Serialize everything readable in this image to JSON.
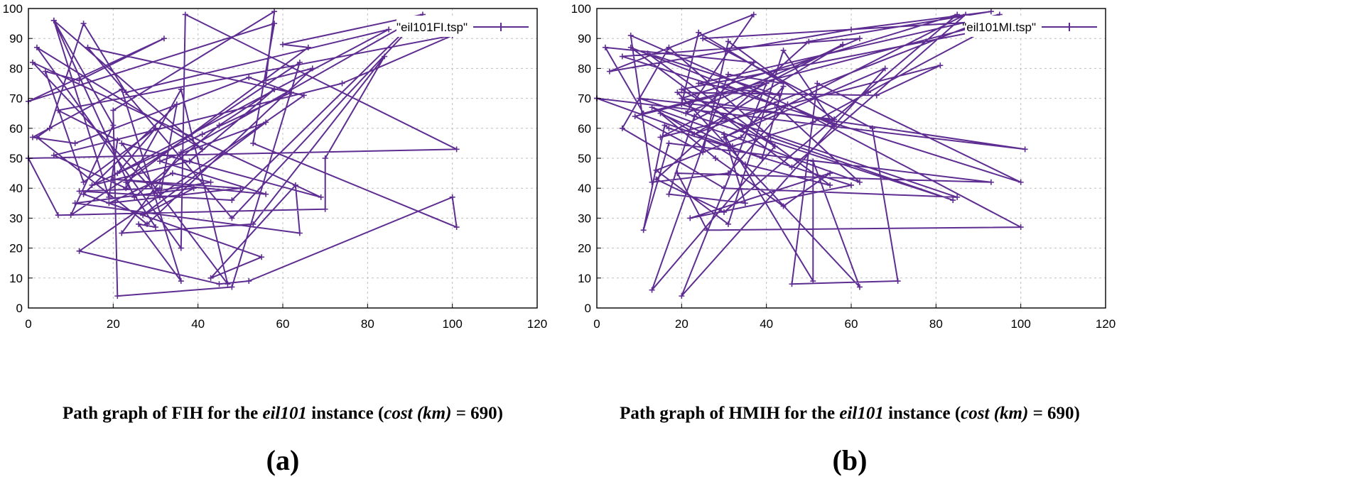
{
  "colors": {
    "series": "#5e2d91",
    "grid": "#bfbfbf",
    "axis": "#000000"
  },
  "chart_data": [
    {
      "type": "line",
      "panel": "(a)",
      "legend": "\"eil101FI.tsp\"",
      "caption": {
        "pre": "Path graph of FIH for the ",
        "instance": "eil101",
        "mid": " instance (",
        "cost": "cost",
        "km": "(km)",
        "post": " = 690)"
      },
      "xlim": [
        0,
        120
      ],
      "ylim": [
        0,
        100
      ],
      "xticks": [
        0,
        20,
        40,
        60,
        80,
        100,
        120
      ],
      "yticks": [
        0,
        10,
        20,
        30,
        40,
        50,
        60,
        70,
        80,
        90,
        100
      ],
      "grid": true,
      "series": [
        {
          "name": "eil101FI.tsp",
          "x": [
            0,
            101,
            37,
            36,
            2,
            41,
            6,
            20,
            10,
            64,
            48,
            21,
            20,
            58,
            56,
            67,
            28,
            2,
            5,
            13,
            23,
            85,
            21,
            30,
            13,
            4,
            12,
            32,
            0,
            58,
            53,
            101,
            100,
            52,
            45,
            12,
            65,
            14,
            48,
            93,
            60,
            66,
            23,
            30,
            26,
            36,
            22,
            1,
            11,
            52,
            62,
            41,
            15,
            38,
            58,
            45,
            25,
            6,
            19,
            21,
            7,
            100,
            74,
            6,
            23,
            36,
            47,
            22,
            69,
            1,
            31,
            35,
            13,
            55,
            43,
            63,
            64,
            11,
            39,
            27,
            56,
            31,
            56,
            20,
            50,
            19,
            34,
            43,
            30,
            31,
            12,
            48,
            92,
            36,
            22,
            53,
            84,
            70,
            70,
            7,
            0
          ],
          "y": [
            50,
            53,
            98,
            20,
            87,
            53,
            96,
            61,
            31,
            82,
            7,
            4,
            66,
            99,
            76,
            80,
            28,
            57,
            60,
            95,
            72,
            93,
            45,
            60,
            42,
            79,
            76,
            90,
            69,
            95,
            55,
            27,
            37,
            9,
            8,
            19,
            71,
            87,
            30,
            98,
            88,
            87,
            42,
            27,
            28,
            9,
            73,
            57,
            55,
            77,
            72,
            58,
            41,
            49,
            73,
            61,
            37,
            96,
            37,
            56,
            66,
            91,
            75,
            51,
            40,
            73,
            8,
            55,
            37,
            82,
            37,
            68,
            38,
            17,
            10,
            41,
            25,
            35,
            40,
            31,
            62,
            49,
            38,
            43,
            40,
            35,
            45,
            42,
            39,
            40,
            39,
            36,
            97,
            52,
            25,
            28,
            84,
            50,
            33,
            31,
            50
          ]
        }
      ]
    },
    {
      "type": "line",
      "panel": "(b)",
      "legend": "\"eil101MI.tsp\"",
      "caption": {
        "pre": "Path graph of HMIH for the ",
        "instance": "eil101",
        "mid": " instance (",
        "cost": "cost",
        "km": "(km)",
        "post": " = 690)"
      },
      "xlim": [
        0,
        120
      ],
      "ylim": [
        0,
        100
      ],
      "xticks": [
        0,
        20,
        40,
        60,
        80,
        100,
        120
      ],
      "yticks": [
        0,
        10,
        20,
        30,
        40,
        50,
        60,
        70,
        80,
        90,
        100
      ],
      "grid": true,
      "series": [
        {
          "name": "eil101MI.tsp",
          "x": [
            0,
            101,
            20,
            85,
            30,
            14,
            50,
            93,
            60,
            3,
            37,
            21,
            62,
            6,
            100,
            52,
            46,
            71,
            65,
            25,
            95,
            11,
            2,
            37,
            23,
            17,
            35,
            30,
            51,
            51,
            62,
            19,
            66,
            81,
            15,
            58,
            23,
            95,
            24,
            43,
            12,
            55,
            35,
            13,
            62,
            42,
            8,
            46,
            87,
            30,
            68,
            20,
            40,
            9,
            25,
            31,
            56,
            10,
            84,
            41,
            17,
            6,
            30,
            85,
            20,
            24,
            44,
            31,
            13,
            42,
            20,
            92,
            64,
            51,
            32,
            15,
            28,
            44,
            55,
            22,
            60,
            17,
            16,
            11,
            17,
            93,
            19,
            26,
            100,
            45,
            31,
            13,
            8,
            56,
            44,
            31,
            14,
            34,
            44,
            39,
            0
          ],
          "y": [
            70,
            53,
            70,
            98,
            32,
            43,
            89,
            99,
            93,
            79,
            98,
            65,
            90,
            84,
            42,
            75,
            8,
            9,
            60,
            90,
            96,
            65,
            87,
            82,
            64,
            38,
            35,
            58,
            9,
            49,
            7,
            72,
            71,
            81,
            57,
            88,
            58,
            98,
            75,
            71,
            85,
            41,
            48,
            67,
            42,
            68,
            87,
            47,
            98,
            57,
            80,
            4,
            75,
            64,
            52,
            89,
            63,
            70,
            36,
            57,
            87,
            60,
            40,
            37,
            68,
            92,
            75,
            78,
            6,
            54,
            73,
            93,
            72,
            62,
            54,
            65,
            50,
            34,
            45,
            30,
            41,
            60,
            61,
            26,
            55,
            42,
            45,
            26,
            27,
            68,
            45,
            42,
            91,
            61,
            86,
            28,
            46,
            57,
            74,
            50,
            70
          ]
        }
      ]
    }
  ]
}
